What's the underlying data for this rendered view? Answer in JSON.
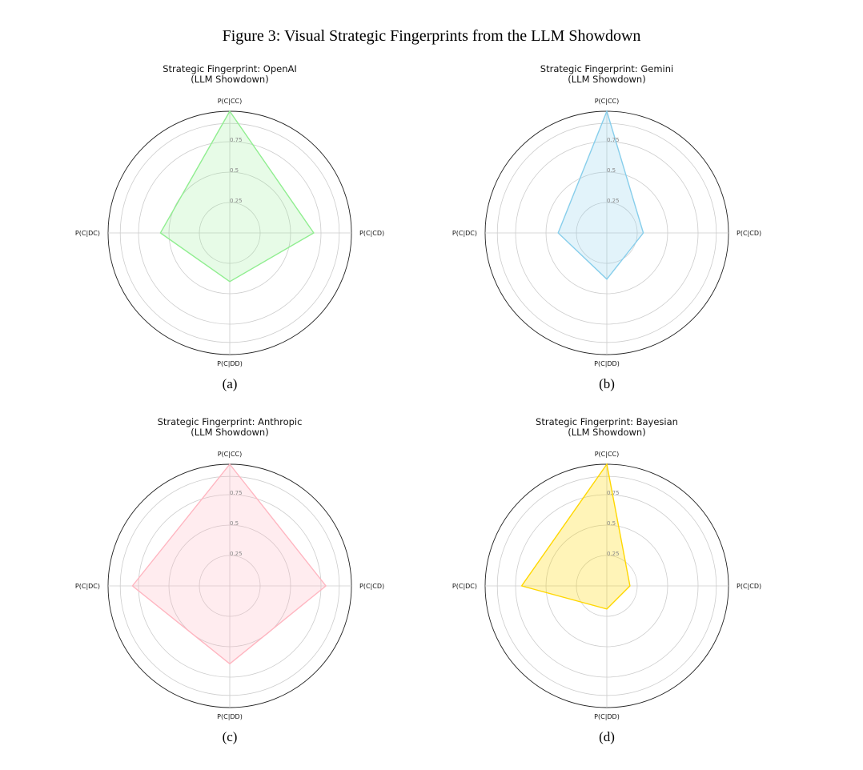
{
  "figure": {
    "title": "Figure 3: Visual Strategic Fingerprints from the LLM Showdown"
  },
  "chart_data": [
    {
      "type": "radar",
      "title": "Strategic Fingerprint: OpenAI",
      "subtitle": "(LLM Showdown)",
      "caption": "(a)",
      "axes": [
        "P(C|CC)",
        "P(C|CD)",
        "P(C|DD)",
        "P(C|DC)"
      ],
      "values": [
        1.0,
        0.69,
        0.4,
        0.57
      ],
      "rlim": [
        0,
        1.0
      ],
      "rticks": [
        0.25,
        0.5,
        0.75
      ],
      "rtick_labels": [
        "0.25",
        "0.5",
        "0.75"
      ],
      "color": "#90ee90",
      "grid": true
    },
    {
      "type": "radar",
      "title": "Strategic Fingerprint: Gemini",
      "subtitle": "(LLM Showdown)",
      "caption": "(b)",
      "axes": [
        "P(C|CC)",
        "P(C|CD)",
        "P(C|DD)",
        "P(C|DC)"
      ],
      "values": [
        1.0,
        0.3,
        0.38,
        0.4
      ],
      "rlim": [
        0,
        1.0
      ],
      "rticks": [
        0.25,
        0.5,
        0.75
      ],
      "rtick_labels": [
        "0.25",
        "0.5",
        "0.75"
      ],
      "color": "#87ceeb",
      "grid": true
    },
    {
      "type": "radar",
      "title": "Strategic Fingerprint: Anthropic",
      "subtitle": "(LLM Showdown)",
      "caption": "(c)",
      "axes": [
        "P(C|CC)",
        "P(C|CD)",
        "P(C|DD)",
        "P(C|DC)"
      ],
      "values": [
        1.0,
        0.79,
        0.64,
        0.8
      ],
      "rlim": [
        0,
        1.0
      ],
      "rticks": [
        0.25,
        0.5,
        0.75
      ],
      "rtick_labels": [
        "0.25",
        "0.5",
        "0.75"
      ],
      "color": "#ffb6c1",
      "grid": true
    },
    {
      "type": "radar",
      "title": "Strategic Fingerprint: Bayesian",
      "subtitle": "(LLM Showdown)",
      "caption": "(d)",
      "axes": [
        "P(C|CC)",
        "P(C|CD)",
        "P(C|DD)",
        "P(C|DC)"
      ],
      "values": [
        1.0,
        0.19,
        0.19,
        0.7
      ],
      "rlim": [
        0,
        1.0
      ],
      "rticks": [
        0.25,
        0.5,
        0.75
      ],
      "rtick_labels": [
        "0.25",
        "0.5",
        "0.75"
      ],
      "color": "#ffd700",
      "grid": true
    }
  ]
}
